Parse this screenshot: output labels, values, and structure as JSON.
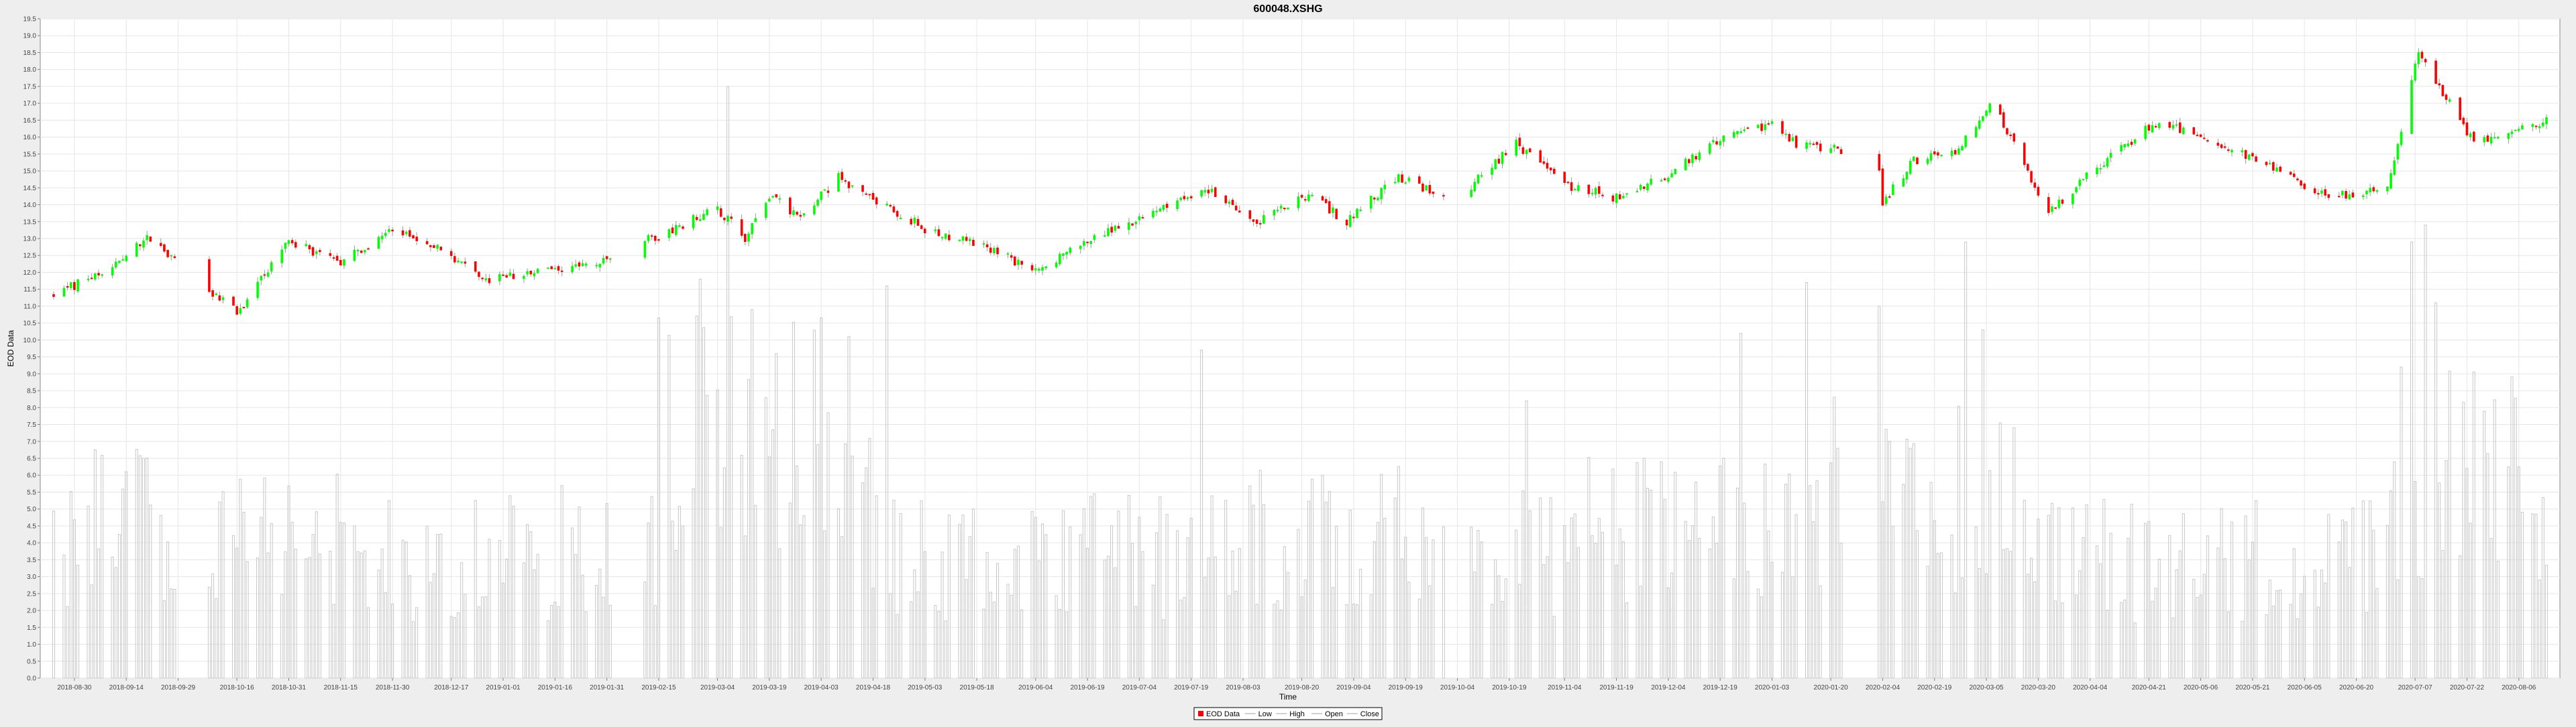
{
  "chart_data": {
    "type": "candlestick",
    "title": "600048.XSHG",
    "xlabel": "Time",
    "ylabel": "EOD Data",
    "ylim": [
      0.0,
      19.5
    ],
    "yticks": [
      "0.0",
      "0.5",
      "1.0",
      "1.5",
      "2.0",
      "2.5",
      "3.0",
      "3.5",
      "4.0",
      "4.5",
      "5.0",
      "5.5",
      "6.0",
      "6.5",
      "7.0",
      "7.5",
      "8.0",
      "8.5",
      "9.0",
      "9.5",
      "10.0",
      "10.5",
      "11.0",
      "11.5",
      "12.0",
      "12.5",
      "13.0",
      "13.5",
      "14.0",
      "14.5",
      "15.0",
      "15.5",
      "16.0",
      "16.5",
      "17.0",
      "17.5",
      "18.0",
      "18.5",
      "19.0",
      "19.5"
    ],
    "xticks": [
      "2018-08-30",
      "2018-09-14",
      "2018-09-29",
      "2018-10-16",
      "2018-10-31",
      "2018-11-15",
      "2018-11-30",
      "2018-12-17",
      "2019-01-01",
      "2019-01-16",
      "2019-01-31",
      "2019-02-15",
      "2019-03-04",
      "2019-03-19",
      "2019-04-03",
      "2019-04-18",
      "2019-05-03",
      "2019-05-18",
      "2019-06-04",
      "2019-06-19",
      "2019-07-04",
      "2019-07-19",
      "2019-08-03",
      "2019-08-20",
      "2019-09-04",
      "2019-09-19",
      "2019-10-04",
      "2019-10-19",
      "2019-11-04",
      "2019-11-19",
      "2019-12-04",
      "2019-12-19",
      "2020-01-03",
      "2020-01-20",
      "2020-02-04",
      "2020-02-19",
      "2020-03-05",
      "2020-03-20",
      "2020-04-04",
      "2020-04-21",
      "2020-05-06",
      "2020-05-21",
      "2020-06-05",
      "2020-06-20",
      "2020-07-07",
      "2020-07-22",
      "2020-08-06"
    ],
    "x_start": "2018-08-24",
    "x_end": "2020-08-14",
    "legend": {
      "placement": "bottom",
      "items": [
        {
          "label": "EOD Data",
          "color": "#ff0000",
          "marker": "square"
        },
        {
          "label": "Low",
          "color": "#c0c0c0",
          "marker": "line"
        },
        {
          "label": "High",
          "color": "#c0c0c0",
          "marker": "line"
        },
        {
          "label": "Open",
          "color": "#c0c0c0",
          "marker": "line"
        },
        {
          "label": "Close",
          "color": "#c0c0c0",
          "marker": "line"
        }
      ]
    },
    "grid": true,
    "colors": {
      "up": "#00ff00",
      "down": "#ff0000",
      "volume": "#d0d0d0",
      "plot_bg": "#ffffff",
      "page_bg": "#eeeeee"
    },
    "segments": [
      {
        "start": "2018-08-24",
        "end": "2018-09-14",
        "from": 11.3,
        "to": 12.4
      },
      {
        "start": "2018-09-14",
        "end": "2018-09-20",
        "from": 12.4,
        "to": 13.1
      },
      {
        "start": "2018-09-20",
        "end": "2018-09-29",
        "from": 13.1,
        "to": 12.2
      },
      {
        "start": "2018-09-29",
        "end": "2018-10-16",
        "from": 12.2,
        "to": 10.8
      },
      {
        "start": "2018-10-16",
        "end": "2018-10-31",
        "from": 10.8,
        "to": 12.9
      },
      {
        "start": "2018-10-31",
        "end": "2018-11-15",
        "from": 12.9,
        "to": 12.3
      },
      {
        "start": "2018-11-15",
        "end": "2018-11-30",
        "from": 12.3,
        "to": 13.3
      },
      {
        "start": "2018-11-30",
        "end": "2018-12-10",
        "from": 13.3,
        "to": 12.9
      },
      {
        "start": "2018-12-10",
        "end": "2018-12-28",
        "from": 12.9,
        "to": 11.8
      },
      {
        "start": "2018-12-28",
        "end": "2019-01-16",
        "from": 11.8,
        "to": 12.1
      },
      {
        "start": "2019-01-16",
        "end": "2019-01-31",
        "from": 12.1,
        "to": 12.4
      },
      {
        "start": "2019-01-31",
        "end": "2019-02-15",
        "from": 12.4,
        "to": 13.1
      },
      {
        "start": "2019-02-15",
        "end": "2019-03-04",
        "from": 13.1,
        "to": 13.9
      },
      {
        "start": "2019-03-04",
        "end": "2019-03-12",
        "from": 13.9,
        "to": 13.0
      },
      {
        "start": "2019-03-12",
        "end": "2019-03-19",
        "from": 13.0,
        "to": 14.3
      },
      {
        "start": "2019-03-19",
        "end": "2019-03-28",
        "from": 14.3,
        "to": 13.6
      },
      {
        "start": "2019-03-28",
        "end": "2019-04-08",
        "from": 13.6,
        "to": 14.8
      },
      {
        "start": "2019-04-08",
        "end": "2019-04-18",
        "from": 14.8,
        "to": 14.2
      },
      {
        "start": "2019-04-18",
        "end": "2019-05-03",
        "from": 14.2,
        "to": 13.3
      },
      {
        "start": "2019-05-03",
        "end": "2019-05-18",
        "from": 13.3,
        "to": 12.8
      },
      {
        "start": "2019-05-18",
        "end": "2019-06-04",
        "from": 12.8,
        "to": 12.1
      },
      {
        "start": "2019-06-04",
        "end": "2019-06-19",
        "from": 12.1,
        "to": 12.9
      },
      {
        "start": "2019-06-19",
        "end": "2019-07-04",
        "from": 12.9,
        "to": 13.6
      },
      {
        "start": "2019-07-04",
        "end": "2019-07-24",
        "from": 13.6,
        "to": 14.4
      },
      {
        "start": "2019-07-24",
        "end": "2019-08-07",
        "from": 14.4,
        "to": 13.5
      },
      {
        "start": "2019-08-07",
        "end": "2019-08-22",
        "from": 13.5,
        "to": 14.3
      },
      {
        "start": "2019-08-22",
        "end": "2019-09-02",
        "from": 14.3,
        "to": 13.5
      },
      {
        "start": "2019-09-02",
        "end": "2019-09-16",
        "from": 13.5,
        "to": 14.8
      },
      {
        "start": "2019-09-16",
        "end": "2019-10-04",
        "from": 14.8,
        "to": 14.2
      },
      {
        "start": "2019-10-04",
        "end": "2019-10-21",
        "from": 14.2,
        "to": 15.8
      },
      {
        "start": "2019-10-21",
        "end": "2019-11-04",
        "from": 15.8,
        "to": 14.6
      },
      {
        "start": "2019-11-04",
        "end": "2019-11-19",
        "from": 14.6,
        "to": 14.2
      },
      {
        "start": "2019-11-19",
        "end": "2019-12-04",
        "from": 14.2,
        "to": 14.9
      },
      {
        "start": "2019-12-04",
        "end": "2019-12-19",
        "from": 14.9,
        "to": 15.9
      },
      {
        "start": "2019-12-19",
        "end": "2020-01-03",
        "from": 15.9,
        "to": 16.4
      },
      {
        "start": "2020-01-03",
        "end": "2020-01-10",
        "from": 16.4,
        "to": 15.8
      },
      {
        "start": "2020-01-10",
        "end": "2020-01-23",
        "from": 15.8,
        "to": 15.6
      },
      {
        "start": "2020-01-23",
        "end": "2020-02-03",
        "from": 15.6,
        "to": 15.0
      },
      {
        "start": "2020-02-03",
        "end": "2020-02-13",
        "from": 13.9,
        "to": 15.3
      },
      {
        "start": "2020-02-13",
        "end": "2020-02-25",
        "from": 15.3,
        "to": 15.6
      },
      {
        "start": "2020-02-25",
        "end": "2020-03-07",
        "from": 15.6,
        "to": 17.0
      },
      {
        "start": "2020-03-07",
        "end": "2020-03-23",
        "from": 17.0,
        "to": 13.8
      },
      {
        "start": "2020-03-23",
        "end": "2020-04-07",
        "from": 13.8,
        "to": 15.2
      },
      {
        "start": "2020-04-07",
        "end": "2020-04-24",
        "from": 15.2,
        "to": 16.5
      },
      {
        "start": "2020-04-24",
        "end": "2020-05-21",
        "from": 16.5,
        "to": 15.4
      },
      {
        "start": "2020-05-21",
        "end": "2020-06-12",
        "from": 15.4,
        "to": 14.2
      },
      {
        "start": "2020-06-12",
        "end": "2020-06-29",
        "from": 14.2,
        "to": 14.5
      },
      {
        "start": "2020-06-29",
        "end": "2020-07-08",
        "from": 14.5,
        "to": 18.5
      },
      {
        "start": "2020-07-08",
        "end": "2020-07-24",
        "from": 18.5,
        "to": 15.8
      },
      {
        "start": "2020-07-24",
        "end": "2020-08-14",
        "from": 15.8,
        "to": 16.5
      }
    ],
    "volume_profile": [
      {
        "start": "2018-08-24",
        "end": "2018-09-29",
        "level": 4.6
      },
      {
        "start": "2018-09-29",
        "end": "2018-11-15",
        "level": 4.2
      },
      {
        "start": "2018-11-15",
        "end": "2019-01-16",
        "level": 3.6
      },
      {
        "start": "2019-01-16",
        "end": "2019-02-15",
        "level": 3.8
      },
      {
        "start": "2019-02-15",
        "end": "2019-04-18",
        "level": 7.2
      },
      {
        "start": "2019-04-18",
        "end": "2019-06-04",
        "level": 3.6
      },
      {
        "start": "2019-06-04",
        "end": "2019-08-03",
        "level": 3.8
      },
      {
        "start": "2019-08-03",
        "end": "2019-09-19",
        "level": 4.2
      },
      {
        "start": "2019-09-19",
        "end": "2019-11-04",
        "level": 3.8
      },
      {
        "start": "2019-11-04",
        "end": "2020-01-20",
        "level": 4.4
      },
      {
        "start": "2020-01-20",
        "end": "2020-03-20",
        "level": 5.6
      },
      {
        "start": "2020-03-20",
        "end": "2020-06-29",
        "level": 3.6
      },
      {
        "start": "2020-06-29",
        "end": "2020-08-14",
        "level": 6.2
      }
    ],
    "gaps": [
      {
        "start": "2018-10-01",
        "end": "2018-10-07"
      },
      {
        "start": "2019-02-04",
        "end": "2019-02-10"
      },
      {
        "start": "2019-10-01",
        "end": "2019-10-07"
      },
      {
        "start": "2020-01-24",
        "end": "2020-02-02"
      }
    ],
    "volume_spikes": [
      {
        "date": "2019-02-27",
        "value": 11.8
      },
      {
        "date": "2019-03-07",
        "value": 17.5
      },
      {
        "date": "2019-03-14",
        "value": 10.9
      },
      {
        "date": "2019-04-11",
        "value": 10.1
      },
      {
        "date": "2019-04-22",
        "value": 11.6
      },
      {
        "date": "2019-07-22",
        "value": 9.7
      },
      {
        "date": "2019-10-24",
        "value": 8.2
      },
      {
        "date": "2019-12-25",
        "value": 10.2
      },
      {
        "date": "2020-01-13",
        "value": 11.7
      },
      {
        "date": "2020-02-03",
        "value": 11.0
      },
      {
        "date": "2020-02-28",
        "value": 12.9
      },
      {
        "date": "2020-03-04",
        "value": 10.3
      },
      {
        "date": "2020-07-06",
        "value": 12.9
      },
      {
        "date": "2020-07-10",
        "value": 13.4
      },
      {
        "date": "2020-07-13",
        "value": 11.1
      }
    ]
  }
}
